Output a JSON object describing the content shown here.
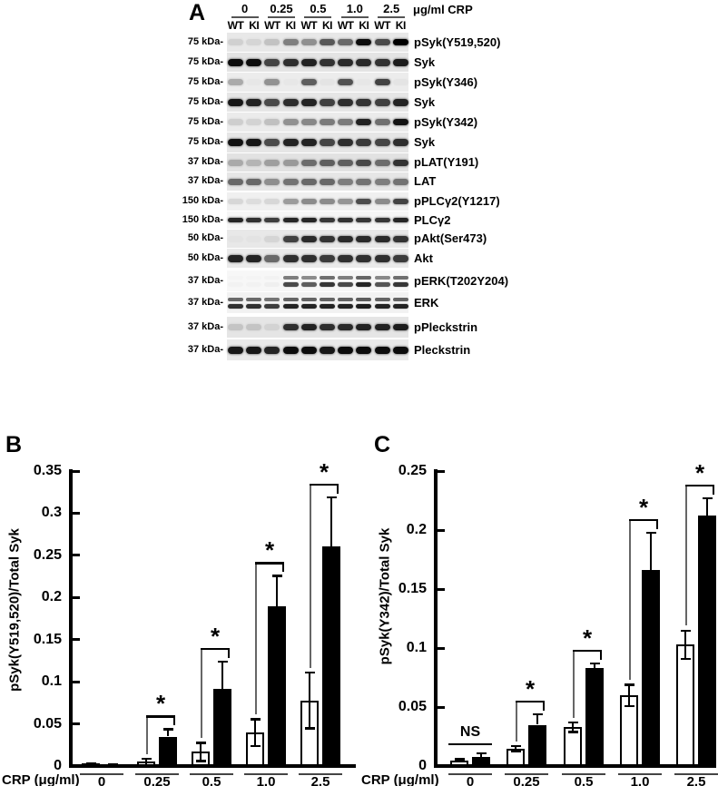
{
  "figure": {
    "panel_a": {
      "letter": "A",
      "dose_header": {
        "doses": [
          "0",
          "0.25",
          "0.5",
          "1.0",
          "2.5"
        ],
        "unit_label": "μg/ml CRP"
      },
      "lane_labels": [
        "WT",
        "KI",
        "WT",
        "KI",
        "WT",
        "KI",
        "WT",
        "KI",
        "WT",
        "KI"
      ],
      "blots": [
        {
          "kda": "75 kDa-",
          "label": "pSyk(Y519,520)",
          "double": false,
          "bg": "#e8e8e8",
          "thick": 7,
          "bands": [
            0.1,
            0.08,
            0.16,
            0.45,
            0.38,
            0.62,
            0.55,
            0.95,
            0.68,
            1.0
          ]
        },
        {
          "kda": "75 kDa-",
          "label": "Syk",
          "double": false,
          "bg": "#e4e4e4",
          "thick": 8,
          "bands": [
            0.95,
            0.95,
            0.7,
            0.8,
            0.85,
            0.78,
            0.82,
            0.82,
            0.78,
            0.88
          ]
        },
        {
          "kda": "75 kDa-",
          "label": "pSyk(Y346)",
          "double": false,
          "bg": "#ececec",
          "thick": 7,
          "bands": [
            0.28,
            0.02,
            0.38,
            0.02,
            0.6,
            0.03,
            0.65,
            0.02,
            0.72,
            0.03
          ]
        },
        {
          "kda": "75 kDa-",
          "label": "Syk",
          "double": false,
          "bg": "#e6e6e6",
          "thick": 8,
          "bands": [
            0.9,
            0.85,
            0.68,
            0.8,
            0.85,
            0.72,
            0.8,
            0.78,
            0.72,
            0.85
          ]
        },
        {
          "kda": "75 kDa-",
          "label": "pSyk(Y342)",
          "double": false,
          "bg": "#ebebeb",
          "thick": 7,
          "bands": [
            0.12,
            0.1,
            0.18,
            0.38,
            0.42,
            0.48,
            0.48,
            0.85,
            0.52,
            0.92
          ]
        },
        {
          "kda": "75 kDa-",
          "label": "Syk",
          "double": false,
          "bg": "#e6e6e6",
          "thick": 8,
          "bands": [
            0.92,
            0.9,
            0.68,
            0.85,
            0.85,
            0.7,
            0.8,
            0.75,
            0.7,
            0.8
          ]
        },
        {
          "kda": "37 kDa-",
          "label": "pLAT(Y191)",
          "double": false,
          "bg": "#e2e2e2",
          "thick": 7,
          "bands": [
            0.25,
            0.2,
            0.3,
            0.32,
            0.52,
            0.58,
            0.58,
            0.68,
            0.52,
            0.78
          ]
        },
        {
          "kda": "37 kDa-",
          "label": "LAT",
          "double": false,
          "bg": "#e6e6e6",
          "thick": 7,
          "bands": [
            0.55,
            0.55,
            0.38,
            0.5,
            0.55,
            0.55,
            0.45,
            0.5,
            0.45,
            0.5
          ]
        },
        {
          "kda": "150 kDa-",
          "label": "pPLCγ2(Y1217)",
          "double": false,
          "bg": "#f0f0f0",
          "thick": 6,
          "bands": [
            0.1,
            0.08,
            0.1,
            0.35,
            0.42,
            0.42,
            0.38,
            0.68,
            0.42,
            0.72
          ]
        },
        {
          "kda": "150 kDa-",
          "label": "PLCγ2",
          "double": false,
          "bg": "#f6f6f6",
          "thick": 5,
          "bands": [
            0.85,
            0.8,
            0.75,
            0.85,
            0.85,
            0.78,
            0.8,
            0.78,
            0.78,
            0.85
          ]
        },
        {
          "kda": "50 kDa-",
          "label": "pAkt(Ser473)",
          "double": false,
          "bg": "#e8e8e8",
          "thick": 7,
          "bands": [
            0.02,
            0.02,
            0.08,
            0.72,
            0.82,
            0.78,
            0.82,
            0.82,
            0.82,
            0.78
          ]
        },
        {
          "kda": "50 kDa-",
          "label": "Akt",
          "double": false,
          "bg": "#eaeaea",
          "thick": 8,
          "bands": [
            0.85,
            0.85,
            0.55,
            0.8,
            0.8,
            0.75,
            0.8,
            0.8,
            0.8,
            0.75
          ]
        },
        {
          "kda": "37 kDa-",
          "label": "pERK(T202Y204)",
          "double": true,
          "bg": "#f7f7f7",
          "thick": 5,
          "bands": [
            0.02,
            0.02,
            0.03,
            0.7,
            0.62,
            0.78,
            0.7,
            0.85,
            0.65,
            0.78
          ]
        },
        {
          "kda": "37 kDa-",
          "label": "ERK",
          "double": true,
          "bg": "#f2f2f2",
          "thick": 5,
          "bands": [
            0.8,
            0.8,
            0.75,
            0.85,
            0.85,
            0.85,
            0.85,
            0.88,
            0.85,
            0.85
          ]
        },
        {
          "kda": "37 kDa-",
          "label": "pPleckstrin",
          "double": false,
          "bg": "#e5e5e5",
          "thick": 7,
          "bands": [
            0.14,
            0.14,
            0.08,
            0.8,
            0.85,
            0.8,
            0.82,
            0.85,
            0.85,
            0.88
          ]
        },
        {
          "kda": "37 kDa-",
          "label": "Pleckstrin",
          "double": false,
          "bg": "#e9e9e9",
          "thick": 8,
          "bands": [
            0.9,
            0.9,
            0.85,
            0.95,
            0.95,
            0.9,
            0.95,
            0.95,
            0.95,
            0.95
          ]
        }
      ]
    },
    "panel_b": {
      "letter": "B"
    },
    "panel_c": {
      "letter": "C"
    }
  },
  "chart_data": [
    {
      "type": "bar",
      "panel": "B",
      "title": "",
      "ylabel": "pSyk(Y519,520)/Total Syk",
      "xlabel": "CRP (μg/ml)",
      "categories": [
        "0",
        "0.25",
        "0.5",
        "1.0",
        "2.5"
      ],
      "ylim": [
        0,
        0.35
      ],
      "ytick_labels": [
        "0",
        "0.05",
        "0.1",
        "0.15",
        "0.2",
        "0.25",
        "0.3",
        "0.35"
      ],
      "grid": false,
      "legend": "none",
      "bar_colors": {
        "WT": "#ffffff",
        "KI": "#000000"
      },
      "series": [
        {
          "name": "WT",
          "fill": "#ffffff",
          "values": [
            0.002,
            0.005,
            0.017,
            0.04,
            0.078
          ],
          "errors": [
            0.001,
            0.004,
            0.011,
            0.016,
            0.033
          ]
        },
        {
          "name": "KI",
          "fill": "#000000",
          "values": [
            0.001,
            0.035,
            0.092,
            0.19,
            0.261
          ],
          "errors": [
            0.001,
            0.009,
            0.032,
            0.036,
            0.058
          ]
        }
      ],
      "significance": [
        "",
        "*",
        "*",
        "*",
        "*"
      ]
    },
    {
      "type": "bar",
      "panel": "C",
      "title": "",
      "ylabel": "pSyk(Y342)/Total Syk",
      "xlabel": "CRP (μg/ml)",
      "categories": [
        "0",
        "0.25",
        "0.5",
        "1.0",
        "2.5"
      ],
      "ylim": [
        0,
        0.25
      ],
      "ytick_labels": [
        "0",
        "0.05",
        "0.1",
        "0.15",
        "0.2",
        "0.25"
      ],
      "grid": false,
      "legend": "none",
      "bar_colors": {
        "WT": "#ffffff",
        "KI": "#000000"
      },
      "series": [
        {
          "name": "WT",
          "fill": "#ffffff",
          "values": [
            0.005,
            0.015,
            0.033,
            0.06,
            0.103
          ],
          "errors": [
            0.001,
            0.002,
            0.004,
            0.009,
            0.012
          ]
        },
        {
          "name": "KI",
          "fill": "#000000",
          "values": [
            0.008,
            0.035,
            0.083,
            0.166,
            0.212
          ],
          "errors": [
            0.003,
            0.009,
            0.004,
            0.032,
            0.015
          ]
        }
      ],
      "significance": [
        "NS",
        "*",
        "*",
        "*",
        "*"
      ]
    }
  ]
}
